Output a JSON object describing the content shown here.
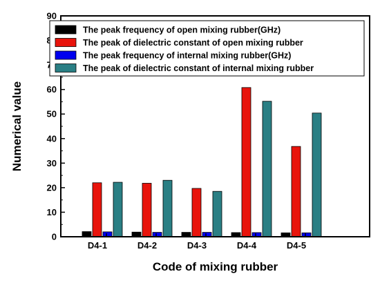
{
  "chart_data": {
    "type": "bar",
    "xlabel": "Code of mixing rubber",
    "ylabel": "Numerical value",
    "ylim": [
      0,
      90
    ],
    "yticks": [
      0,
      10,
      20,
      30,
      40,
      50,
      60,
      70,
      80,
      90
    ],
    "categories": [
      "D4-1",
      "D4-2",
      "D4-3",
      "D4-4",
      "D4-5"
    ],
    "legend_position": "top",
    "series": [
      {
        "name": "The peak frequency of open mixing rubber(GHz)",
        "color": "#000000",
        "values": [
          2.1,
          1.9,
          1.8,
          1.7,
          1.6
        ]
      },
      {
        "name": "The peak of dielectric constant of open mixing rubber",
        "color": "#e8140c",
        "values": [
          22.0,
          21.8,
          19.7,
          60.8,
          36.8
        ]
      },
      {
        "name": "The peak frequency of internal mixing rubber(GHz)",
        "color": "#0000ee",
        "values": [
          2.0,
          1.8,
          1.8,
          1.7,
          1.6
        ]
      },
      {
        "name": "The peak of dielectric constant of internal mixing rubber",
        "color": "#2a7f84",
        "values": [
          22.2,
          23.0,
          18.5,
          55.2,
          50.4
        ]
      }
    ]
  }
}
